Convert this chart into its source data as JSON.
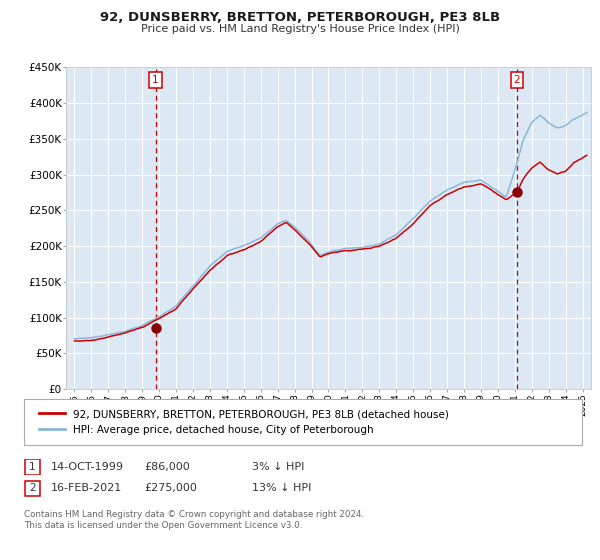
{
  "title": "92, DUNSBERRY, BRETTON, PETERBOROUGH, PE3 8LB",
  "subtitle": "Price paid vs. HM Land Registry's House Price Index (HPI)",
  "bg_color": "#dce9f5",
  "hpi_color": "#8ab8d8",
  "price_color": "#cc0000",
  "marker_color": "#880000",
  "vline_color": "#cc0000",
  "grid_color": "#ffffff",
  "sale1_date_x": 1999.79,
  "sale1_price": 86000,
  "sale2_date_x": 2021.12,
  "sale2_price": 275000,
  "ylim": [
    0,
    450000
  ],
  "xlim": [
    1994.5,
    2025.5
  ],
  "yticks": [
    0,
    50000,
    100000,
    150000,
    200000,
    250000,
    300000,
    350000,
    400000,
    450000
  ],
  "legend_label_price": "92, DUNSBERRY, BRETTON, PETERBOROUGH, PE3 8LB (detached house)",
  "legend_label_hpi": "HPI: Average price, detached house, City of Peterborough",
  "table_row1": [
    "1",
    "14-OCT-1999",
    "£86,000",
    "3% ↓ HPI"
  ],
  "table_row2": [
    "2",
    "16-FEB-2021",
    "£275,000",
    "13% ↓ HPI"
  ],
  "footnote1": "Contains HM Land Registry data © Crown copyright and database right 2024.",
  "footnote2": "This data is licensed under the Open Government Licence v3.0."
}
